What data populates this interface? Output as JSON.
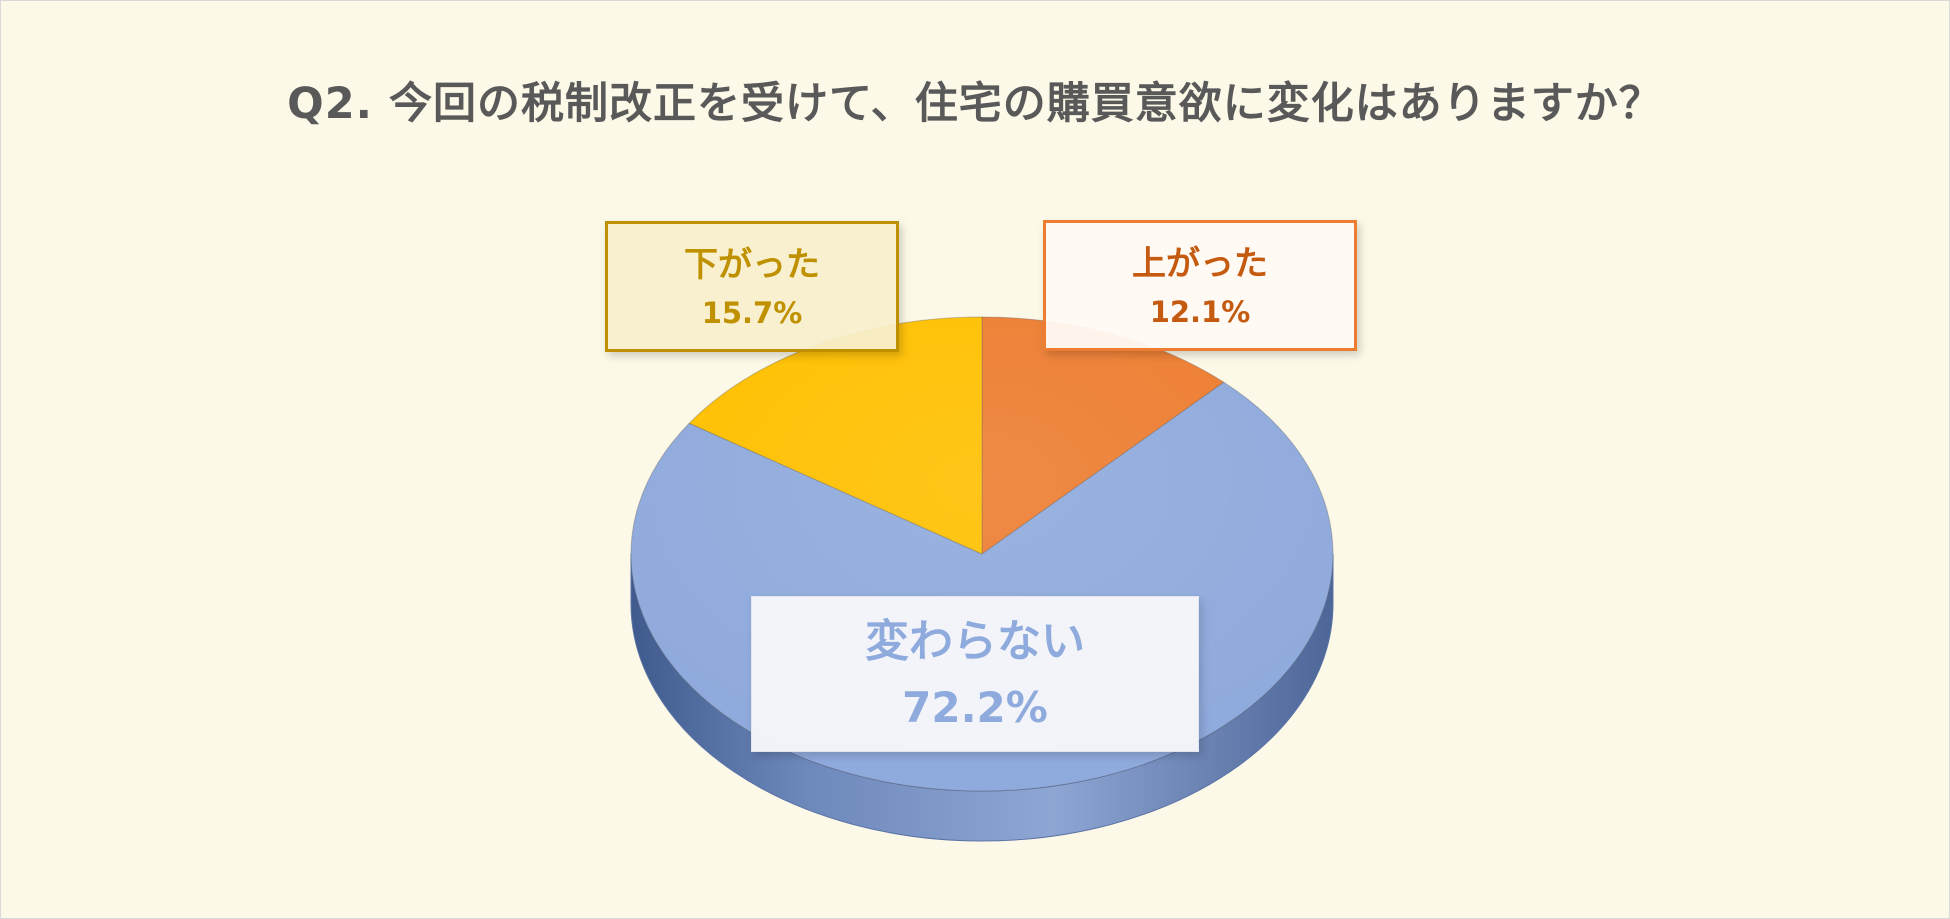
{
  "chart_data": {
    "type": "pie",
    "title": "Q2. 今回の税制改正を受けて、住宅の購買意欲に変化はありますか？",
    "slices": [
      {
        "label": "上がった",
        "value": 12.1,
        "display": "12.1%",
        "color": "#ed7d31",
        "label_color": "#c55a11"
      },
      {
        "label": "変わらない",
        "value": 72.2,
        "display": "72.2%",
        "color": "#8faadc",
        "label_color": "#8faadc"
      },
      {
        "label": "下がった",
        "value": 15.7,
        "display": "15.7%",
        "color": "#ffc000",
        "label_color": "#bf9000"
      }
    ],
    "start_angle": "12 o'clock",
    "direction": "clockwise",
    "style": "3d",
    "legend": "none"
  }
}
